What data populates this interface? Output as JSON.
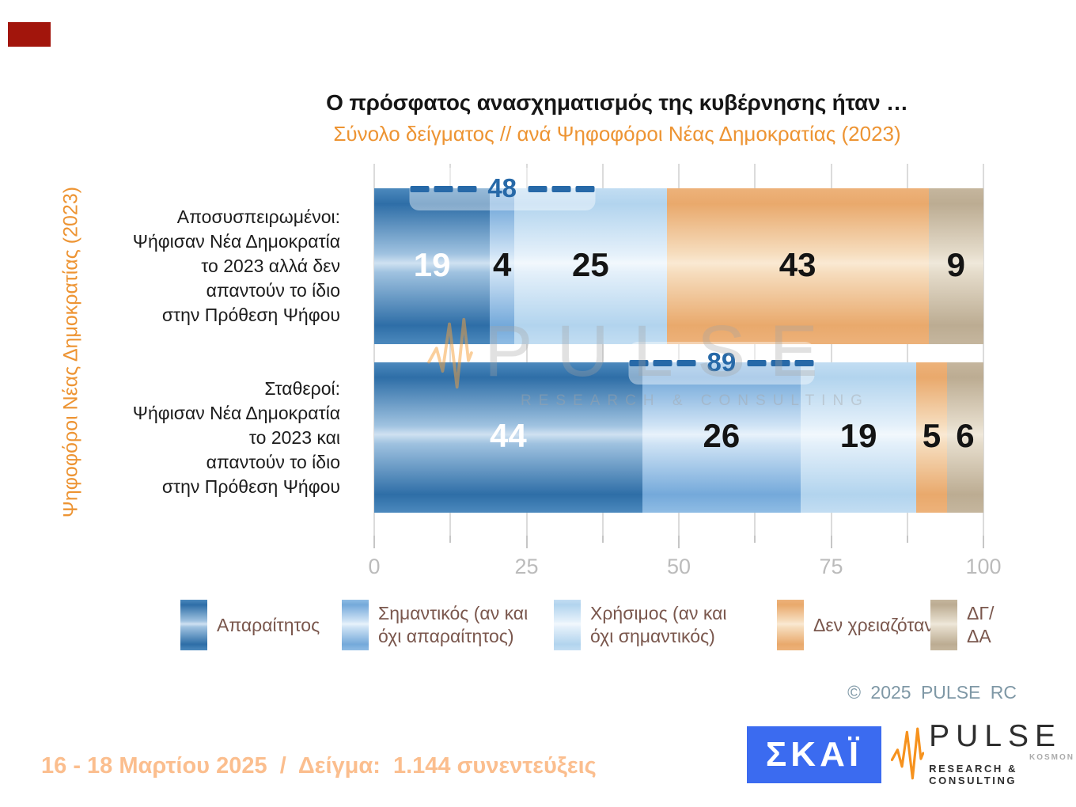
{
  "header": {
    "title": "Ο πρόσφατος ανασχηματισμός της κυβέρνησης ήταν …",
    "subtitle": "Σύνολο δείγματος // ανά Ψηφοφόροι Νέας Δημοκρατίας (2023)"
  },
  "chart_data": {
    "type": "bar",
    "orientation": "horizontal",
    "stacked": true,
    "title": "Ο πρόσφατος ανασχηματισμός της κυβέρνησης ήταν …",
    "subtitle": "Σύνολο δείγματος // ανά Ψηφοφόροι Νέας Δημοκρατίας (2023)",
    "ylabel": "Ψηφοφόροι Νέας Δημοκρατίας (2023)",
    "xlim": [
      0,
      100
    ],
    "x_ticks": [
      "0",
      "25",
      "50",
      "75",
      "100"
    ],
    "grid": "vertical gridlines every 12.5 units",
    "legend_position": "bottom",
    "categories": [
      {
        "lines": [
          "Αποσυσπειρωμένοι:",
          "Ψήφισαν Νέα Δημοκρατία",
          "το 2023 αλλά δεν",
          "απαντούν το ίδιο",
          "στην Πρόθεση Ψήφου"
        ]
      },
      {
        "lines": [
          "Σταθεροί:",
          "Ψήφισαν Νέα Δημοκρατία",
          "το 2023 και",
          "απαντούν το ίδιο",
          "στην Πρόθεση Ψήφου"
        ]
      }
    ],
    "series": [
      {
        "name": "Απαραίτητος",
        "color": "#2E6EA7",
        "values": [
          19,
          44
        ]
      },
      {
        "name": "Σημαντικός (αν και όχι απαραίτητος)",
        "color": "#74A9DA",
        "values": [
          4,
          26
        ]
      },
      {
        "name": "Χρήσιμος (αν και όχι σημαντικός)",
        "color": "#B2D4EE",
        "values": [
          25,
          19
        ]
      },
      {
        "name": "Δεν χρειαζόταν",
        "color": "#E9A96C",
        "values": [
          43,
          5
        ]
      },
      {
        "name": "ΔΓ/ΔΑ",
        "color": "#BCAC92",
        "values": [
          9,
          6
        ]
      }
    ],
    "annotations": [
      {
        "row": 0,
        "label": 48,
        "meaning": "sum of first three answers (19+4+25)",
        "center_pct": 21
      },
      {
        "row": 1,
        "label": 89,
        "meaning": "sum of first three answers (44+26+19)",
        "center_pct": 57
      }
    ]
  },
  "legend": {
    "items": [
      {
        "lines": [
          "Απαραίτητος"
        ]
      },
      {
        "lines": [
          "Σημαντικός (αν και",
          "όχι απαραίτητος)"
        ]
      },
      {
        "lines": [
          "Χρήσιμος (αν και",
          "όχι σημαντικός)"
        ]
      },
      {
        "lines": [
          "Δεν χρειαζόταν"
        ]
      },
      {
        "lines": [
          "ΔΓ/",
          "ΔΑ"
        ]
      }
    ]
  },
  "watermark": {
    "text": "PULSE",
    "sub": "RESEARCH & CONSULTING"
  },
  "footer": {
    "copyright": "© 2025 PULSE RC",
    "fieldwork": "16 - 18 Μαρτίου 2025  /  Δείγμα:  1.144 συνεντεύξεις"
  },
  "logos": {
    "skai": "ΣΚΑΪ",
    "pulse_name": "PULSE",
    "pulse_kosmon": "KOSMON",
    "pulse_sub": "RESEARCH & CONSULTING"
  },
  "colors": {
    "accent_orange": "#ED9433",
    "fieldwork_orange": "#FBBE8E",
    "bracket_blue": "#2769A8",
    "legend_text_brown": "#7A574D",
    "axis_gray": "#BBBBBB",
    "gridline_gray": "#DBDBDB",
    "copyright_gray_blue": "#7F98A6",
    "skai_blue": "#3B6BF0",
    "pulse_orange": "#F6921E",
    "red_block": "#A2150C",
    "series": [
      "#2E6EA7",
      "#74A9DA",
      "#B2D4EE",
      "#E9A96C",
      "#BCAC92"
    ]
  }
}
